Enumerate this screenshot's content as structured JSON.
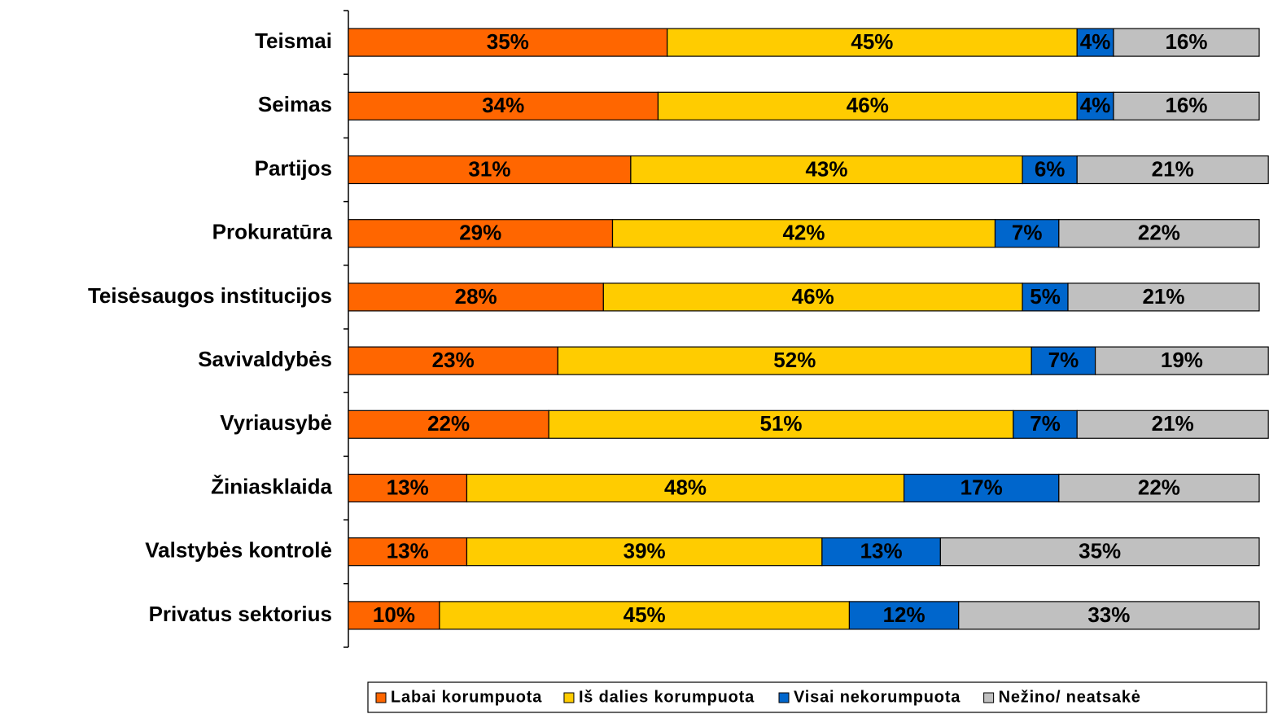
{
  "chart_data": {
    "type": "stacked-barh",
    "categories": [
      "Teismai",
      "Seimas",
      "Partijos",
      "Prokuratūra",
      "Teisėsaugos institucijos",
      "Savivaldybės",
      "Vyriausybė",
      "Žiniasklaida",
      "Valstybės kontrolė",
      "Privatus sektorius"
    ],
    "series": [
      {
        "name": "Labai korumpuota",
        "color": "#ff6600",
        "values": [
          35,
          34,
          31,
          29,
          28,
          23,
          22,
          13,
          13,
          10
        ],
        "value_labels": [
          "35%",
          "34%",
          "31%",
          "29%",
          "28%",
          "23%",
          "22%",
          "13%",
          "13%",
          "10%"
        ]
      },
      {
        "name": "Iš dalies korumpuota",
        "color": "#ffcc00",
        "values": [
          45,
          46,
          43,
          42,
          46,
          52,
          51,
          48,
          39,
          45
        ],
        "value_labels": [
          "45%",
          "46%",
          "43%",
          "42%",
          "46%",
          "52%",
          "51%",
          "48%",
          "39%",
          "45%"
        ]
      },
      {
        "name": "Visai nekorumpuota",
        "color": "#0066cc",
        "values": [
          4,
          4,
          6,
          7,
          5,
          7,
          7,
          17,
          13,
          12
        ],
        "value_labels": [
          "4%",
          "4%",
          "6%",
          "7%",
          "5%",
          "7%",
          "7%",
          "17%",
          "13%",
          "12%"
        ]
      },
      {
        "name": "Nežino/ neatsakė",
        "color": "#c0c0c0",
        "values": [
          16,
          16,
          21,
          22,
          21,
          19,
          21,
          22,
          35,
          33
        ],
        "value_labels": [
          "16%",
          "16%",
          "21%",
          "22%",
          "21%",
          "19%",
          "21%",
          "22%",
          "35%",
          "33%"
        ]
      }
    ],
    "xlim": [
      0,
      100
    ],
    "legend": "bottom-right"
  }
}
